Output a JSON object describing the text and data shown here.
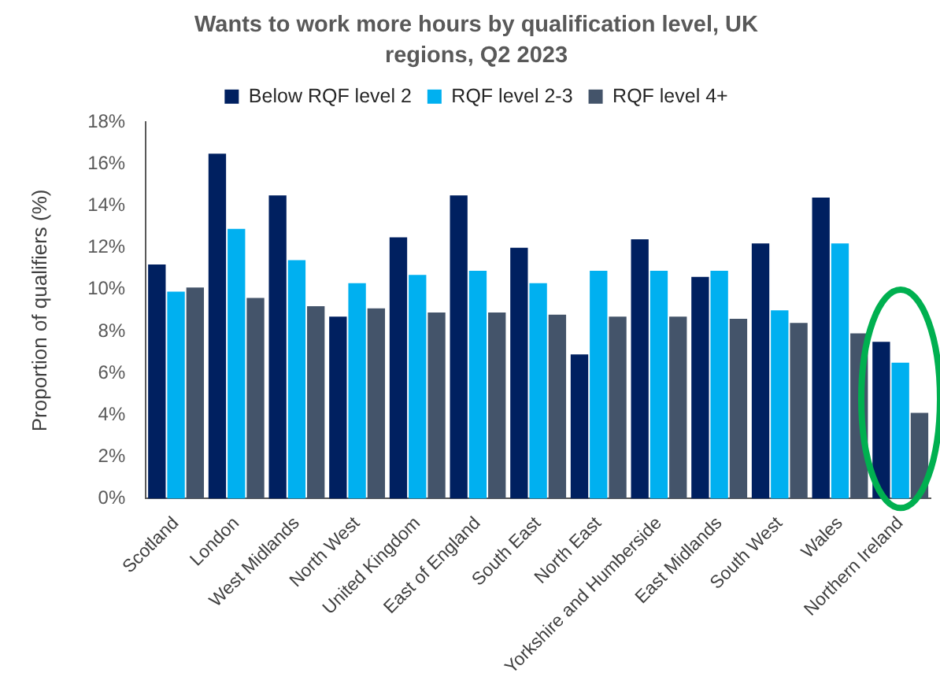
{
  "chart_data": {
    "type": "bar",
    "title": "Wants to work more hours by qualification level, UK regions, Q2 2023",
    "ylabel": "Proportion of qualifiers (%)",
    "categories": [
      "Scotland",
      "London",
      "West Midlands",
      "North West",
      "United Kingdom",
      "East of England",
      "South East",
      "North East",
      "Yorkshire and Humberside",
      "East Midlands",
      "South West",
      "Wales",
      "Northern Ireland"
    ],
    "series": [
      {
        "name": "Below RQF level 2",
        "color": "#002060",
        "values": [
          11.2,
          16.5,
          14.5,
          8.7,
          12.5,
          14.5,
          12.0,
          6.9,
          12.4,
          10.6,
          12.2,
          14.4,
          7.5
        ]
      },
      {
        "name": "RQF level 2-3",
        "color": "#00b0f0",
        "values": [
          9.9,
          12.9,
          11.4,
          10.3,
          10.7,
          10.9,
          10.3,
          10.9,
          10.9,
          10.9,
          9.0,
          12.2,
          6.5
        ]
      },
      {
        "name": "RQF level 4+",
        "color": "#44546a",
        "values": [
          10.1,
          9.6,
          9.2,
          9.1,
          8.9,
          8.9,
          8.8,
          8.7,
          8.7,
          8.6,
          8.4,
          7.9,
          4.1
        ]
      }
    ],
    "ylim": [
      0,
      18
    ],
    "yticks": [
      {
        "value": 0,
        "label": "0%"
      },
      {
        "value": 2,
        "label": "2%"
      },
      {
        "value": 4,
        "label": "4%"
      },
      {
        "value": 6,
        "label": "6%"
      },
      {
        "value": 8,
        "label": "8%"
      },
      {
        "value": 10,
        "label": "10%"
      },
      {
        "value": 12,
        "label": "12%"
      },
      {
        "value": 14,
        "label": "14%"
      },
      {
        "value": 16,
        "label": "16%"
      },
      {
        "value": 18,
        "label": "18%"
      }
    ],
    "grid": false,
    "legend": "top"
  }
}
